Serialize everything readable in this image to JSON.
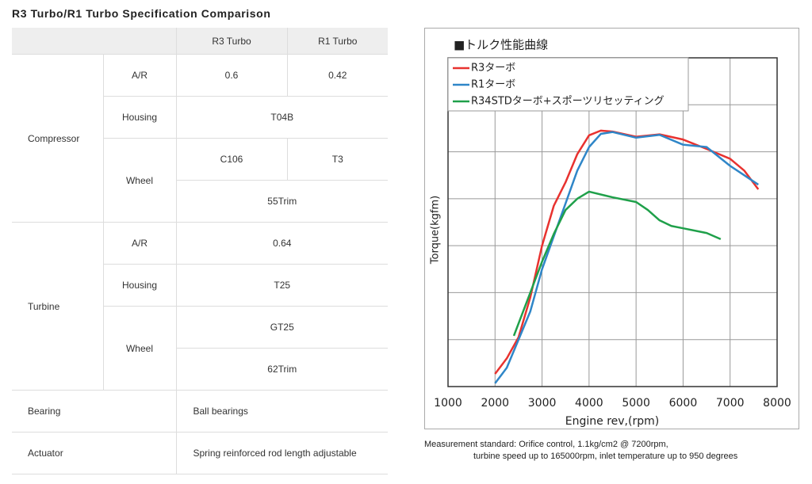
{
  "header": {
    "title": "R3 Turbo/R1 Turbo Specification Comparison"
  },
  "table": {
    "columns": [
      "R3 Turbo",
      "R1 Turbo"
    ],
    "compressor": {
      "group": "Compressor",
      "ar": {
        "label": "A/R",
        "values": [
          "0.6",
          "0.42"
        ]
      },
      "housing": {
        "label": "Housing",
        "values": [
          "T04B"
        ]
      },
      "wheel": {
        "label": "Wheel",
        "values": [
          "C106",
          "T3",
          "55Trim"
        ]
      }
    },
    "turbine": {
      "group": "Turbine",
      "ar": {
        "label": "A/R",
        "values": [
          "0.64"
        ]
      },
      "housing": {
        "label": "Housing",
        "values": [
          "T25"
        ]
      },
      "wheel": {
        "label": "Wheel",
        "values": [
          "GT25",
          "62Trim"
        ]
      }
    },
    "bearing": {
      "label": "Bearing",
      "value": "Ball bearings"
    },
    "actuator": {
      "label": "Actuator",
      "value": "Spring reinforced rod length adjustable"
    }
  },
  "chart_data": {
    "type": "line",
    "title": "■トルク性能曲線",
    "x_label": "Engine rev,(rpm)",
    "y_label": "Torque(kgfm)",
    "xlim": [
      1000,
      8000
    ],
    "xticks": [
      1000,
      2000,
      3000,
      4000,
      5000,
      6000,
      7000,
      8000
    ],
    "ylim": [
      0,
      7
    ],
    "yticks": [
      0,
      1,
      2,
      3,
      4,
      5,
      6,
      7
    ],
    "ytick_labels": false,
    "grid": true,
    "legend": "upper left",
    "series": [
      {
        "name": "R3ターボ",
        "color": "#e8322f",
        "x": [
          2000,
          2250,
          2500,
          2750,
          3000,
          3250,
          3500,
          3750,
          4000,
          4250,
          4500,
          5000,
          5500,
          6000,
          6500,
          7000,
          7300,
          7600
        ],
        "values": [
          0.27,
          0.6,
          1.05,
          1.9,
          3.0,
          3.85,
          4.35,
          4.95,
          5.35,
          5.45,
          5.43,
          5.32,
          5.37,
          5.26,
          5.06,
          4.85,
          4.6,
          4.2
        ]
      },
      {
        "name": "R1ターボ",
        "color": "#2f86c8",
        "x": [
          2000,
          2250,
          2500,
          2750,
          3000,
          3250,
          3500,
          3750,
          4000,
          4250,
          4500,
          5000,
          5500,
          6000,
          6500,
          7000,
          7300,
          7600
        ],
        "values": [
          0.07,
          0.4,
          1.0,
          1.6,
          2.5,
          3.2,
          3.9,
          4.6,
          5.1,
          5.38,
          5.42,
          5.3,
          5.36,
          5.15,
          5.1,
          4.7,
          4.5,
          4.3
        ]
      },
      {
        "name": "R34STDターボ+スポーツリセッティング",
        "color": "#1fa04a",
        "x": [
          2400,
          2750,
          3000,
          3250,
          3500,
          3750,
          4000,
          4500,
          5000,
          5250,
          5500,
          5750,
          6000,
          6500,
          6800
        ],
        "values": [
          1.08,
          2.0,
          2.66,
          3.25,
          3.76,
          4.0,
          4.15,
          4.03,
          3.93,
          3.76,
          3.54,
          3.42,
          3.37,
          3.27,
          3.14
        ]
      }
    ]
  },
  "caption": {
    "line1": "Measurement standard: Orifice control, 1.1kg/cm2 @ 7200rpm,",
    "line2": "turbine speed up to 165000rpm, inlet temperature up to 950 degrees"
  }
}
